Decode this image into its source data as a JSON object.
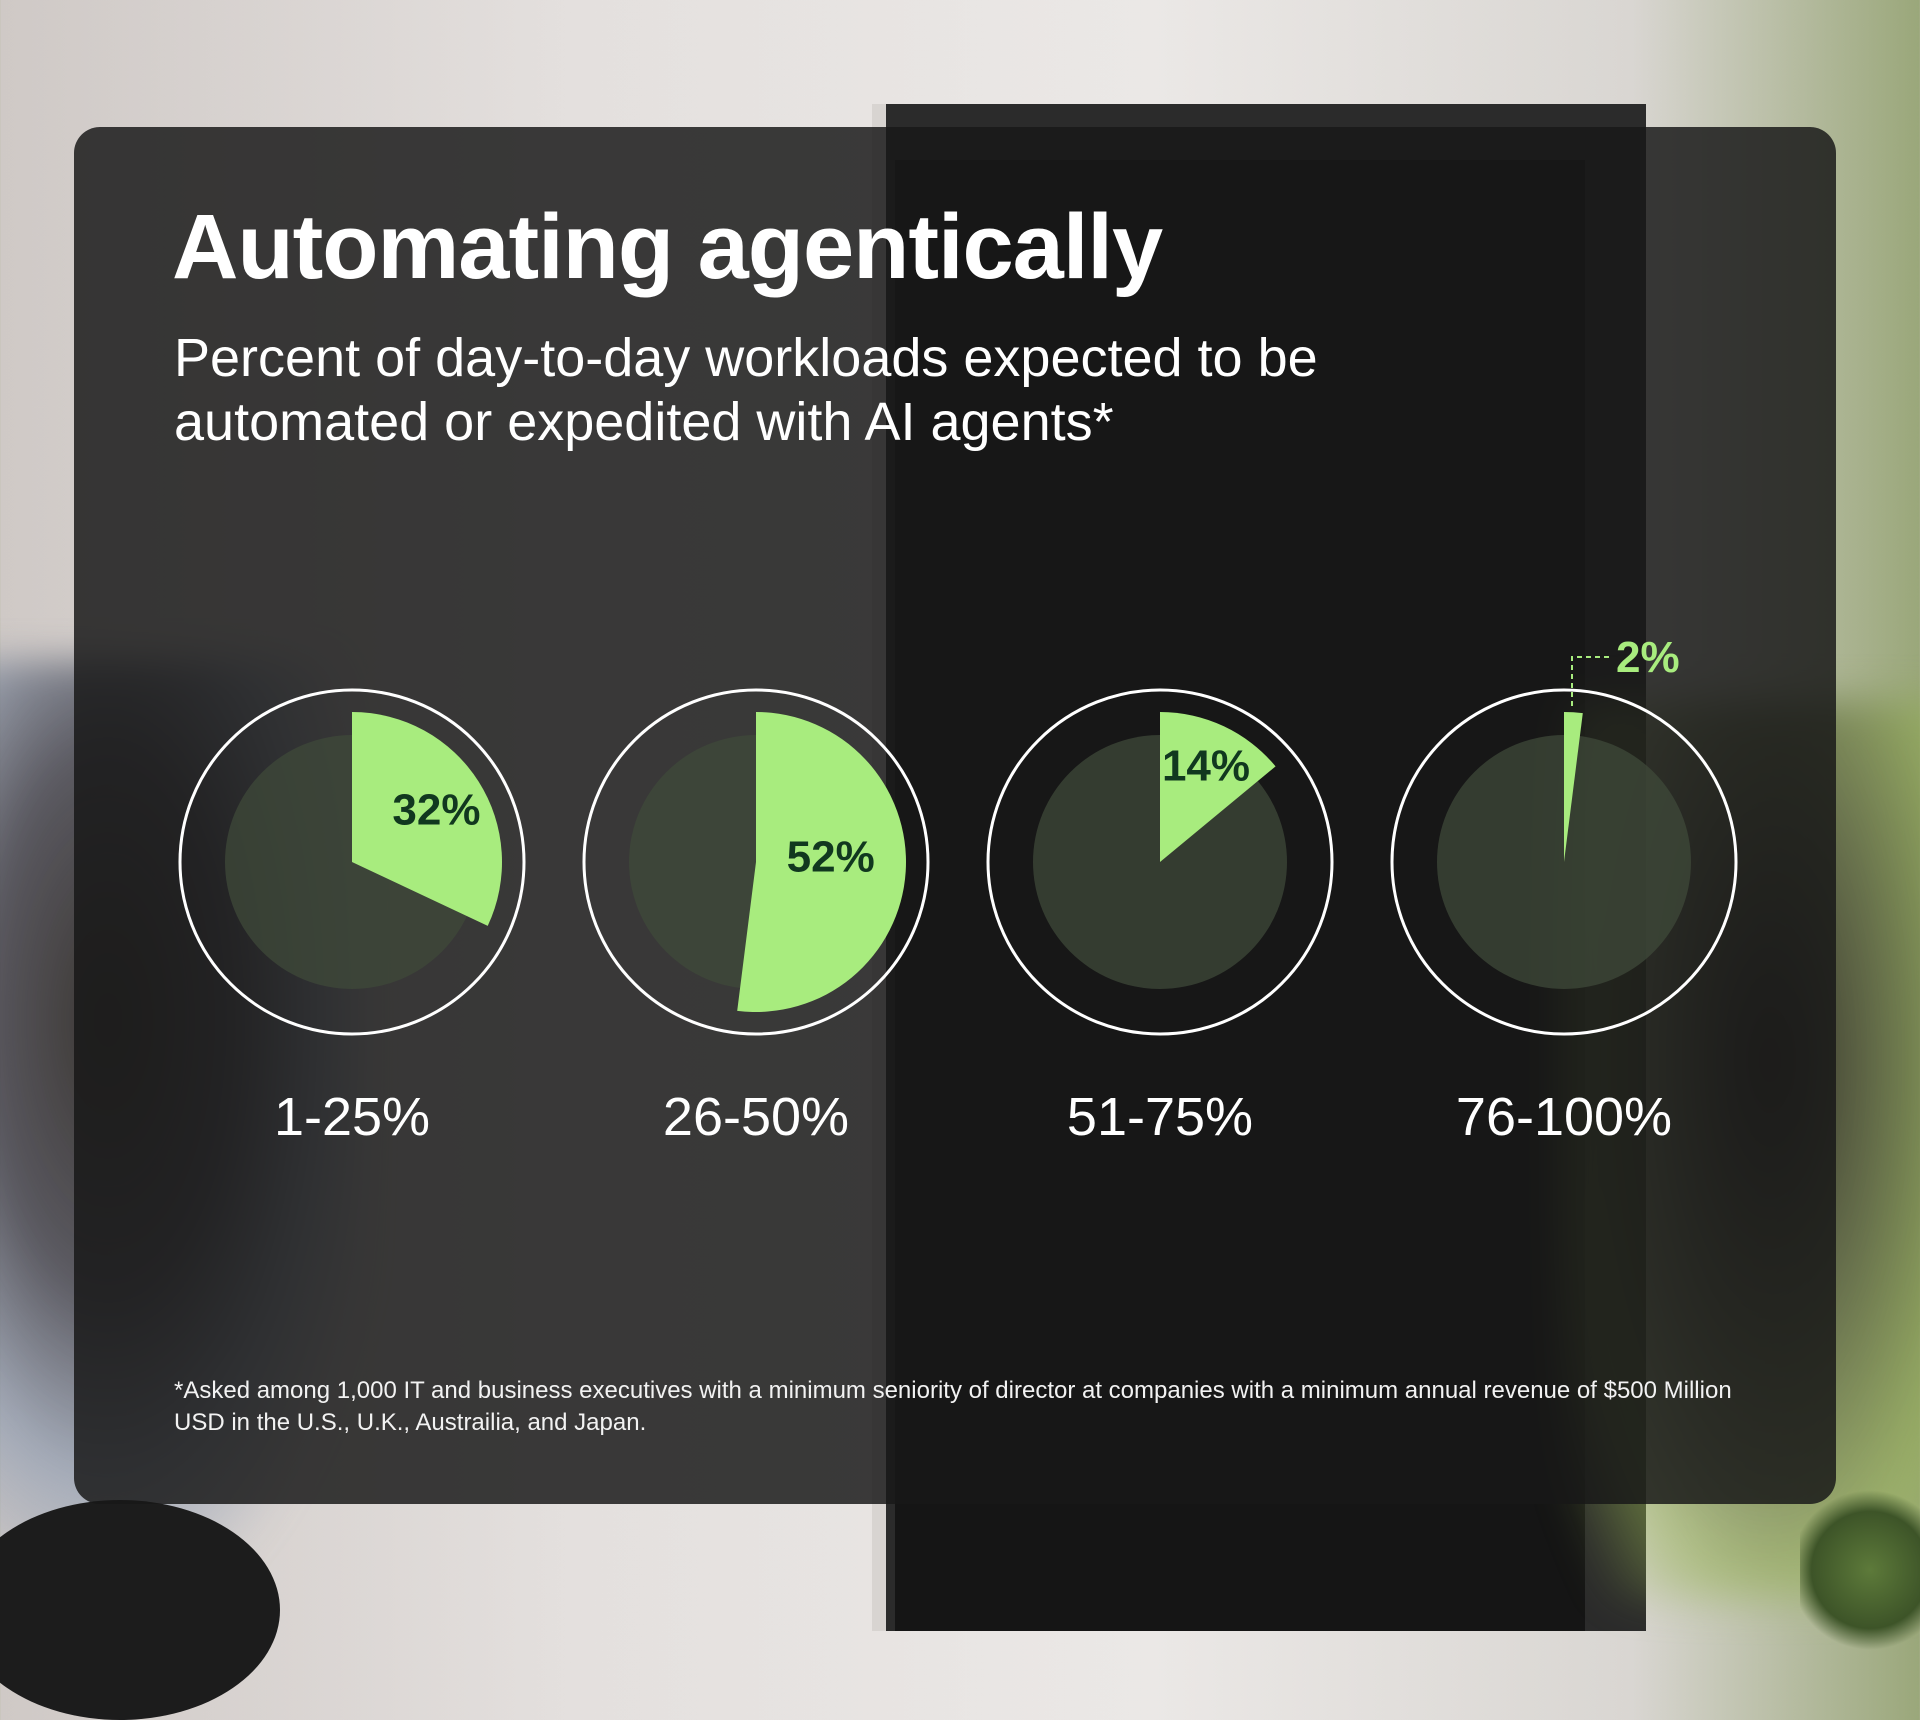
{
  "title": "Automating agentically",
  "subtitle": "Percent of day-to-day workloads expected to be automated or expedited with AI agents*",
  "footnote": "*Asked among 1,000 IT and business executives with a minimum seniority of director at companies with a minimum annual revenue of $500 Million USD in the U.S., U.K., Austrailia, and Japan.",
  "colors": {
    "accent": "#a8ec7e",
    "label_dark": "#11381f",
    "inner_disc": "#3f4a3a",
    "ring": "#ffffff"
  },
  "chart_data": {
    "type": "pie",
    "title": "Automating agentically",
    "subtitle": "Percent of day-to-day workloads expected to be automated or expedited with AI agents*",
    "unit": "%",
    "categories": [
      "1-25%",
      "26-50%",
      "51-75%",
      "76-100%"
    ],
    "values": [
      32,
      52,
      14,
      2
    ],
    "value_labels": [
      "32%",
      "52%",
      "14%",
      "2%"
    ]
  }
}
